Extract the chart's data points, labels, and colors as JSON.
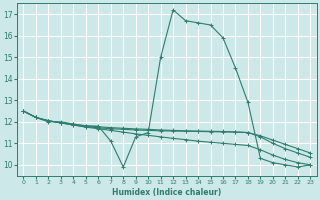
{
  "xlabel": "Humidex (Indice chaleur)",
  "bg_color": "#cde8e8",
  "grid_color": "#ffffff",
  "line_color": "#2e7d6e",
  "xlim": [
    -0.5,
    23.5
  ],
  "ylim": [
    9.5,
    17.5
  ],
  "xticks": [
    0,
    1,
    2,
    3,
    4,
    5,
    6,
    7,
    8,
    9,
    10,
    11,
    12,
    13,
    14,
    15,
    16,
    17,
    18,
    19,
    20,
    21,
    22,
    23
  ],
  "yticks": [
    10,
    11,
    12,
    13,
    14,
    15,
    16,
    17
  ],
  "curve1_x": [
    0,
    1,
    2,
    3,
    4,
    5,
    6,
    7,
    8,
    9,
    10,
    11,
    12,
    13,
    14,
    15,
    16,
    17,
    18,
    19,
    20,
    21,
    22,
    23
  ],
  "curve1_y": [
    12.5,
    12.2,
    12.0,
    12.0,
    11.9,
    11.8,
    11.8,
    11.1,
    9.9,
    11.3,
    11.5,
    15.0,
    17.2,
    16.7,
    16.6,
    16.5,
    15.9,
    14.5,
    12.9,
    10.3,
    10.1,
    10.0,
    9.9,
    10.0
  ],
  "curve2_x": [
    0,
    1,
    2,
    3,
    4,
    5,
    6,
    7,
    8,
    9,
    10,
    11,
    12,
    13,
    14,
    15,
    16,
    17,
    18,
    19,
    20,
    21,
    22,
    23
  ],
  "curve2_y": [
    12.5,
    12.2,
    12.05,
    11.95,
    11.85,
    11.78,
    11.72,
    11.68,
    11.65,
    11.62,
    11.6,
    11.58,
    11.57,
    11.56,
    11.55,
    11.54,
    11.53,
    11.52,
    11.5,
    11.35,
    11.15,
    10.95,
    10.75,
    10.55
  ],
  "curve3_x": [
    0,
    1,
    2,
    3,
    4,
    5,
    6,
    7,
    8,
    9,
    10,
    11,
    12,
    13,
    14,
    15,
    16,
    17,
    18,
    19,
    20,
    21,
    22,
    23
  ],
  "curve3_y": [
    12.5,
    12.2,
    12.05,
    11.95,
    11.88,
    11.82,
    11.77,
    11.73,
    11.7,
    11.67,
    11.65,
    11.62,
    11.6,
    11.58,
    11.57,
    11.56,
    11.55,
    11.53,
    11.5,
    11.3,
    11.0,
    10.75,
    10.55,
    10.35
  ],
  "curve4_x": [
    0,
    1,
    2,
    3,
    4,
    5,
    6,
    7,
    8,
    9,
    10,
    11,
    12,
    13,
    14,
    15,
    16,
    17,
    18,
    19,
    20,
    21,
    22,
    23
  ],
  "curve4_y": [
    12.5,
    12.2,
    12.05,
    11.95,
    11.85,
    11.75,
    11.68,
    11.6,
    11.52,
    11.44,
    11.37,
    11.3,
    11.23,
    11.17,
    11.1,
    11.05,
    11.0,
    10.95,
    10.9,
    10.7,
    10.45,
    10.25,
    10.1,
    10.0
  ]
}
